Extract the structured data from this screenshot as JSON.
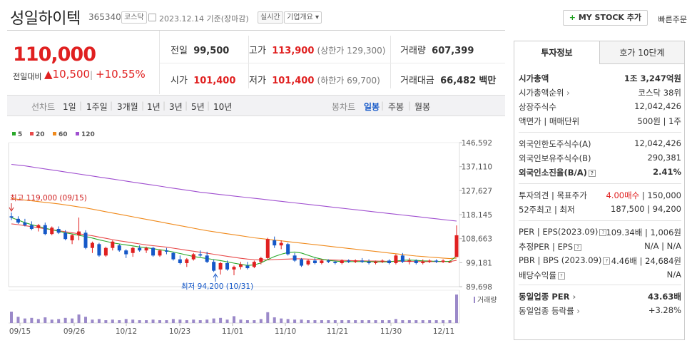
{
  "header": {
    "company": "성일하이텍",
    "code": "365340",
    "market_badge": "코스닥",
    "date_text": "2023.12.14 기준(장마감)",
    "realtime_badge": "실시간",
    "company_info_button": "기업개요",
    "mystock_button": "MY STOCK 추가",
    "quick_order": "빠른주문"
  },
  "price": {
    "current": "110,000",
    "diff_label": "전일대비",
    "diff": "10,500",
    "rate": "+10.55%"
  },
  "quote": {
    "prev_label": "전일",
    "prev": "99,500",
    "high_label": "고가",
    "high": "113,900",
    "upper_limit": "(상한가 129,300)",
    "volume_label": "거래량",
    "volume": "607,399",
    "open_label": "시가",
    "open": "101,400",
    "low_label": "저가",
    "low": "101,400",
    "lower_limit": "(하한가 69,700)",
    "amount_label": "거래대금",
    "amount": "66,482",
    "amount_unit": "백만"
  },
  "periods": {
    "line_label": "선차트",
    "line": [
      "1일",
      "1주일",
      "3개월",
      "1년",
      "3년",
      "5년",
      "10년"
    ],
    "candle_label": "봉차트",
    "candle": [
      "일봉",
      "주봉",
      "월봉"
    ]
  },
  "colors": {
    "up": "#e02020",
    "down": "#1558c8",
    "ma5": "#2aa82a",
    "ma20": "#e84a4a",
    "ma60": "#f08a1c",
    "ma120": "#a050d0"
  },
  "chart_data": {
    "type": "candlestick",
    "legend": [
      "5",
      "20",
      "60",
      "120"
    ],
    "y_ticks": [
      "146,592",
      "137,110",
      "127,627",
      "118,145",
      "108,663",
      "99,181",
      "89,698"
    ],
    "x_ticks": [
      "09/15",
      "09/26",
      "10/12",
      "10/23",
      "11/01",
      "11/10",
      "11/21",
      "11/30",
      "12/11"
    ],
    "ylim": [
      89698,
      146592
    ],
    "high_annotation": "최고 119,000 (09/15)",
    "low_annotation": "최저 94,200 (10/31)",
    "volume_label": "거래량",
    "candles": [
      [
        117500,
        119000,
        116000,
        117000
      ],
      [
        116500,
        117500,
        114500,
        115000
      ],
      [
        115000,
        116500,
        113500,
        114000
      ],
      [
        114000,
        115500,
        112000,
        112500
      ],
      [
        113000,
        114500,
        111500,
        114000
      ],
      [
        114000,
        115000,
        110000,
        110500
      ],
      [
        110500,
        113500,
        110000,
        113000
      ],
      [
        112500,
        113500,
        110500,
        111000
      ],
      [
        111000,
        112000,
        108000,
        108500
      ],
      [
        108000,
        110500,
        106500,
        110000
      ],
      [
        110000,
        117000,
        108000,
        111500
      ],
      [
        111000,
        112000,
        104500,
        105000
      ],
      [
        105000,
        107500,
        103000,
        107000
      ],
      [
        106500,
        107000,
        101500,
        102000
      ],
      [
        102000,
        105500,
        101500,
        105000
      ],
      [
        105000,
        108000,
        104000,
        107500
      ],
      [
        106000,
        106500,
        103500,
        104000
      ],
      [
        104000,
        104500,
        101000,
        102500
      ],
      [
        103000,
        105500,
        101500,
        105000
      ],
      [
        105000,
        106000,
        103500,
        104000
      ],
      [
        104000,
        105500,
        103000,
        105000
      ],
      [
        105000,
        105500,
        101500,
        102000
      ],
      [
        102000,
        104500,
        101500,
        104000
      ],
      [
        104000,
        105000,
        102500,
        103500
      ],
      [
        103000,
        103500,
        100000,
        100500
      ],
      [
        100500,
        102000,
        98500,
        99000
      ],
      [
        99000,
        101000,
        97500,
        100500
      ],
      [
        100500,
        103000,
        100000,
        102500
      ],
      [
        102500,
        104000,
        101500,
        102000
      ],
      [
        102000,
        103500,
        99000,
        99500
      ],
      [
        99500,
        100500,
        95500,
        96000
      ],
      [
        96500,
        99500,
        94500,
        99000
      ],
      [
        99000,
        100000,
        96000,
        96500
      ],
      [
        96500,
        98000,
        94200,
        97500
      ],
      [
        97500,
        99500,
        96500,
        98500
      ],
      [
        98000,
        99500,
        96500,
        97000
      ],
      [
        97500,
        100000,
        97000,
        99500
      ],
      [
        99500,
        101500,
        98500,
        101000
      ],
      [
        101000,
        109000,
        100500,
        108500
      ],
      [
        108000,
        109500,
        105000,
        106000
      ],
      [
        106000,
        108000,
        104500,
        107000
      ],
      [
        106500,
        107000,
        102000,
        102500
      ],
      [
        102000,
        103000,
        99500,
        100000
      ],
      [
        100500,
        101000,
        97500,
        98000
      ],
      [
        98500,
        100500,
        98000,
        100000
      ],
      [
        100000,
        101000,
        98500,
        99000
      ],
      [
        99000,
        100500,
        98500,
        100000
      ],
      [
        100000,
        100500,
        99000,
        99500
      ],
      [
        99500,
        100000,
        98500,
        99000
      ],
      [
        99000,
        100500,
        98500,
        100000
      ],
      [
        100000,
        100500,
        99000,
        99500
      ],
      [
        99500,
        100500,
        99000,
        100000
      ],
      [
        100000,
        101000,
        99000,
        99500
      ],
      [
        99500,
        100500,
        98500,
        99000
      ],
      [
        99000,
        100000,
        98500,
        99500
      ],
      [
        99500,
        100500,
        99000,
        100000
      ],
      [
        100000,
        100500,
        98500,
        99000
      ],
      [
        99000,
        102500,
        98500,
        102000
      ],
      [
        102000,
        103000,
        99000,
        99500
      ],
      [
        99500,
        101000,
        98500,
        100000
      ],
      [
        100000,
        100500,
        98500,
        99000
      ],
      [
        99000,
        100500,
        98500,
        99500
      ],
      [
        99500,
        100500,
        99000,
        100000
      ],
      [
        100000,
        100500,
        99000,
        99500
      ],
      [
        99500,
        100500,
        99000,
        100000
      ],
      [
        99500,
        100000,
        99000,
        99500
      ],
      [
        101400,
        113900,
        101400,
        110000
      ]
    ],
    "ma5": [
      117000,
      116000,
      115000,
      114200,
      113500,
      112800,
      112200,
      111600,
      111000,
      110500,
      110000,
      109500,
      108900,
      108200,
      107600,
      107000,
      106600,
      106200,
      105800,
      105400,
      105100,
      104700,
      104300,
      103900,
      103400,
      102800,
      102200,
      101600,
      101200,
      100800,
      100400,
      100000,
      99500,
      99000,
      98500,
      98100,
      98300,
      99100,
      100400,
      101600,
      102500,
      103200,
      103400,
      103000,
      102100,
      101200,
      100600,
      100100,
      99800,
      99600,
      99600,
      99600,
      99600,
      99600,
      99500,
      99500,
      99500,
      99800,
      100100,
      100200,
      100100,
      99900,
      99800,
      99700,
      99700,
      99700,
      101800
    ],
    "ma20": [
      114500,
      114200,
      113800,
      113400,
      113000,
      112600,
      112200,
      111800,
      111400,
      111000,
      110600,
      110200,
      109800,
      109300,
      108800,
      108300,
      107800,
      107400,
      107000,
      106600,
      106200,
      105900,
      105600,
      105300,
      104900,
      104500,
      104100,
      103700,
      103300,
      102900,
      102500,
      102100,
      101700,
      101300,
      100900,
      100600,
      100400,
      100300,
      100300,
      100400,
      100500,
      100600,
      100700,
      100700,
      100600,
      100500,
      100400,
      100300,
      100200,
      100100,
      100000,
      99950,
      99900,
      99850,
      99800,
      99750,
      99700,
      99700,
      99700,
      99700,
      99650,
      99600,
      99600,
      99600,
      99600,
      99600,
      100100
    ],
    "ma60": [
      124500,
      124200,
      123900,
      123600,
      123300,
      123000,
      122700,
      122400,
      122000,
      121600,
      121200,
      120800,
      120300,
      119800,
      119300,
      118800,
      118300,
      117800,
      117300,
      116800,
      116300,
      115800,
      115300,
      114800,
      114300,
      113800,
      113300,
      112800,
      112300,
      111800,
      111400,
      111000,
      110600,
      110200,
      109800,
      109400,
      109000,
      108700,
      108400,
      108100,
      107800,
      107500,
      107200,
      106900,
      106600,
      106300,
      106000,
      105700,
      105400,
      105100,
      104800,
      104500,
      104200,
      103900,
      103600,
      103300,
      103000,
      102700,
      102400,
      102100,
      101800,
      101600,
      101400,
      101200,
      101000,
      100800,
      101000
    ],
    "ma120": [
      138000,
      137700,
      137400,
      137000,
      136600,
      136200,
      135800,
      135400,
      135000,
      134600,
      134200,
      133800,
      133400,
      133000,
      132600,
      132200,
      131800,
      131400,
      131000,
      130600,
      130200,
      129800,
      129400,
      129000,
      128600,
      128200,
      127800,
      127400,
      127000,
      126700,
      126400,
      126100,
      125800,
      125500,
      125200,
      124900,
      124600,
      124300,
      124000,
      123700,
      123400,
      123100,
      122800,
      122500,
      122200,
      121900,
      121600,
      121300,
      121000,
      120700,
      120400,
      120100,
      119800,
      119500,
      119200,
      118900,
      118600,
      118300,
      118000,
      117700,
      117400,
      117100,
      116800,
      116500,
      116200,
      115900,
      115600
    ],
    "volumes": [
      40,
      22,
      16,
      18,
      14,
      20,
      12,
      14,
      18,
      16,
      30,
      22,
      12,
      14,
      10,
      12,
      10,
      14,
      12,
      10,
      10,
      12,
      10,
      10,
      14,
      12,
      10,
      12,
      10,
      12,
      16,
      18,
      12,
      24,
      12,
      10,
      10,
      14,
      38,
      20,
      16,
      14,
      12,
      12,
      10,
      10,
      10,
      10,
      10,
      10,
      10,
      10,
      10,
      10,
      10,
      10,
      10,
      14,
      10,
      10,
      10,
      10,
      10,
      10,
      10,
      10,
      100
    ]
  },
  "invest": {
    "tab_active": "투자정보",
    "tab_inactive": "호가 10단계",
    "rows1": [
      {
        "k": "시가총액",
        "v": "1조 3,247억원",
        "bold": true
      },
      {
        "k": "시가총액순위",
        "v": "코스닥 38위",
        "arrow": true
      },
      {
        "k": "상장주식수",
        "v": "12,042,426"
      },
      {
        "k": "액면가 | 매매단위",
        "v": "500원 | 1주"
      }
    ],
    "rows2": [
      {
        "k": "외국인한도주식수(A)",
        "v": "12,042,426"
      },
      {
        "k": "외국인보유주식수(B)",
        "v": "290,381"
      },
      {
        "k": "외국인소진율(B/A)",
        "v": "2.41%",
        "bold": true,
        "q": true
      }
    ],
    "rows3": [
      {
        "k": "투자의견 | 목표주가",
        "v_red": "4.00매수",
        "v": " | 150,000"
      },
      {
        "k": "52주최고 | 최저",
        "v": "187,500 | 94,200"
      }
    ],
    "rows4": [
      {
        "k": "PER | EPS(2023.09)",
        "v": "109.34배 | 1,006원",
        "q": true
      },
      {
        "k": "추정PER | EPS",
        "v": "N/A | N/A",
        "q": true
      },
      {
        "k": "PBR | BPS (2023.09)",
        "v": "4.46배 | 24,684원",
        "q": true
      },
      {
        "k": "배당수익률",
        "v": "N/A",
        "q": true
      }
    ],
    "rows5": [
      {
        "k": "동일업종 PER",
        "v": "43.63배",
        "bold": true,
        "arrow": true
      },
      {
        "k": "동일업종 등락률",
        "v": "+3.28%",
        "red": true,
        "arrow": true
      }
    ]
  }
}
